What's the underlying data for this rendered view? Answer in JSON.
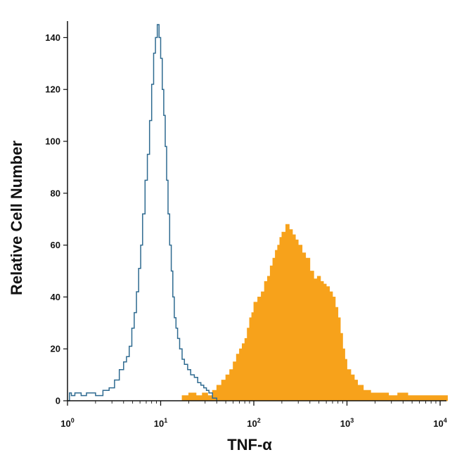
{
  "chart_data": {
    "type": "area",
    "title": "",
    "xlabel": "TNF-α",
    "ylabel": "Relative Cell Number",
    "x_scale": "log",
    "xlim": [
      1,
      13000
    ],
    "ylim": [
      0,
      145
    ],
    "x_ticks": [
      {
        "value": 1,
        "base": "10",
        "exp": "0"
      },
      {
        "value": 10,
        "base": "10",
        "exp": "1"
      },
      {
        "value": 100,
        "base": "10",
        "exp": "2"
      },
      {
        "value": 1000,
        "base": "10",
        "exp": "3"
      },
      {
        "value": 10000,
        "base": "10",
        "exp": "4"
      }
    ],
    "y_ticks": [
      0,
      20,
      40,
      60,
      80,
      100,
      120,
      140
    ],
    "grid": false,
    "legend": "none",
    "series": [
      {
        "style": "outline",
        "color": "#2e6a90",
        "x": [
          1.0,
          1.05,
          1.1,
          1.2,
          1.4,
          1.6,
          2.0,
          2.4,
          2.8,
          3.2,
          3.6,
          4.0,
          4.3,
          4.6,
          4.9,
          5.2,
          5.5,
          5.8,
          6.1,
          6.4,
          6.8,
          7.2,
          7.6,
          8.0,
          8.4,
          8.8,
          9.2,
          9.6,
          10.0,
          10.4,
          10.8,
          11.2,
          11.6,
          12.0,
          12.5,
          13.0,
          13.5,
          14.0,
          14.6,
          15.2,
          16.0,
          17.0,
          18.0,
          19.5,
          21.0,
          23.0,
          25.0,
          27.0,
          29.0,
          31.0,
          33.0,
          36.0,
          40.0
        ],
        "y": [
          0,
          3,
          2,
          3,
          2,
          3,
          2,
          4,
          5,
          8,
          12,
          15,
          17,
          21,
          28,
          34,
          42,
          51,
          60,
          72,
          85,
          95,
          108,
          122,
          134,
          140,
          145,
          140,
          132,
          120,
          110,
          98,
          85,
          72,
          60,
          50,
          40,
          32,
          28,
          24,
          20,
          16,
          14,
          12,
          10,
          9,
          7,
          6,
          5,
          4,
          3,
          1,
          0
        ]
      },
      {
        "style": "filled",
        "color": "#f7a21b",
        "x": [
          15,
          17,
          20,
          24,
          28,
          32,
          36,
          40,
          45,
          50,
          55,
          60,
          65,
          70,
          75,
          80,
          85,
          90,
          95,
          100,
          110,
          120,
          130,
          140,
          150,
          160,
          170,
          180,
          190,
          200,
          220,
          240,
          260,
          280,
          300,
          330,
          360,
          400,
          440,
          480,
          520,
          560,
          600,
          650,
          700,
          750,
          800,
          850,
          900,
          950,
          1000,
          1100,
          1200,
          1300,
          1500,
          1800,
          2200,
          2800,
          3500,
          4500,
          6000,
          8000,
          10000,
          12000
        ],
        "y": [
          0,
          2,
          3,
          2,
          3,
          2,
          4,
          6,
          8,
          10,
          12,
          15,
          18,
          20,
          22,
          24,
          28,
          32,
          34,
          38,
          40,
          42,
          46,
          48,
          52,
          55,
          58,
          60,
          63,
          65,
          68,
          66,
          64,
          62,
          60,
          57,
          55,
          50,
          47,
          48,
          46,
          45,
          44,
          42,
          40,
          36,
          32,
          26,
          20,
          16,
          12,
          10,
          8,
          6,
          4,
          3,
          3,
          2,
          3,
          2,
          2,
          2,
          2,
          0
        ]
      }
    ]
  }
}
